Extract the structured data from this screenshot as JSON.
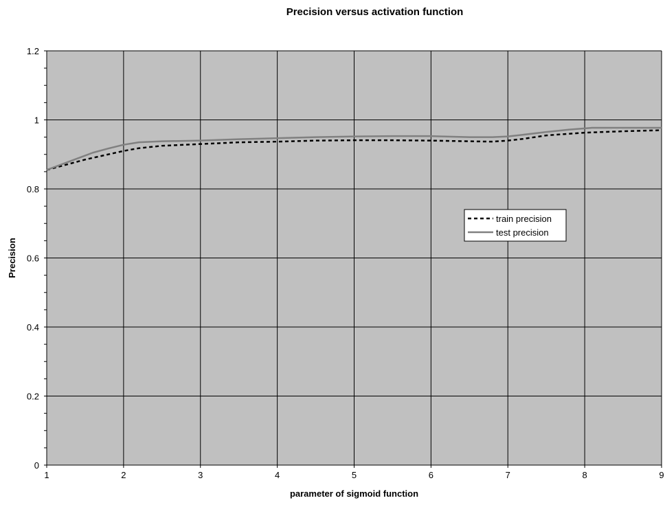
{
  "chart_data": {
    "type": "line",
    "title": "Precision versus activation function",
    "xlabel": "parameter of sigmoid function",
    "ylabel": "Precision",
    "xlim": [
      1,
      9
    ],
    "ylim": [
      0,
      1.2
    ],
    "x_ticks": [
      1,
      2,
      3,
      4,
      5,
      6,
      7,
      8,
      9
    ],
    "y_ticks": [
      0,
      0.2,
      0.4,
      0.6,
      0.8,
      1,
      1.2
    ],
    "x_tick_labels": [
      "1",
      "2",
      "3",
      "4",
      "5",
      "6",
      "7",
      "8",
      "9"
    ],
    "y_tick_labels": [
      "0",
      "0.2",
      "0.4",
      "0.6",
      "0.8",
      "1",
      "1.2"
    ],
    "grid": true,
    "legend_position": "right-middle",
    "plot_background": "#c0c0c0",
    "series": [
      {
        "name": "train precision",
        "color": "#000000",
        "style": "dashed",
        "x": [
          1,
          1.5,
          1.8,
          2,
          2.2,
          2.5,
          3,
          3.5,
          4,
          4.5,
          5,
          5.5,
          6,
          6.5,
          6.8,
          7,
          7.2,
          7.5,
          8,
          8.5,
          9
        ],
        "y": [
          0.855,
          0.885,
          0.9,
          0.91,
          0.918,
          0.925,
          0.93,
          0.935,
          0.937,
          0.94,
          0.941,
          0.941,
          0.94,
          0.938,
          0.937,
          0.94,
          0.945,
          0.955,
          0.963,
          0.967,
          0.97
        ]
      },
      {
        "name": "test precision",
        "color": "#808080",
        "style": "solid",
        "x": [
          1,
          1.3,
          1.6,
          1.8,
          2,
          2.2,
          2.5,
          3,
          3.5,
          4,
          4.5,
          5,
          5.5,
          6,
          6.5,
          6.8,
          7,
          7.2,
          7.5,
          7.8,
          8.1,
          8.5,
          9
        ],
        "y": [
          0.855,
          0.88,
          0.905,
          0.917,
          0.928,
          0.935,
          0.938,
          0.94,
          0.944,
          0.947,
          0.95,
          0.952,
          0.953,
          0.953,
          0.95,
          0.95,
          0.952,
          0.957,
          0.965,
          0.972,
          0.977,
          0.977,
          0.977
        ]
      }
    ]
  }
}
